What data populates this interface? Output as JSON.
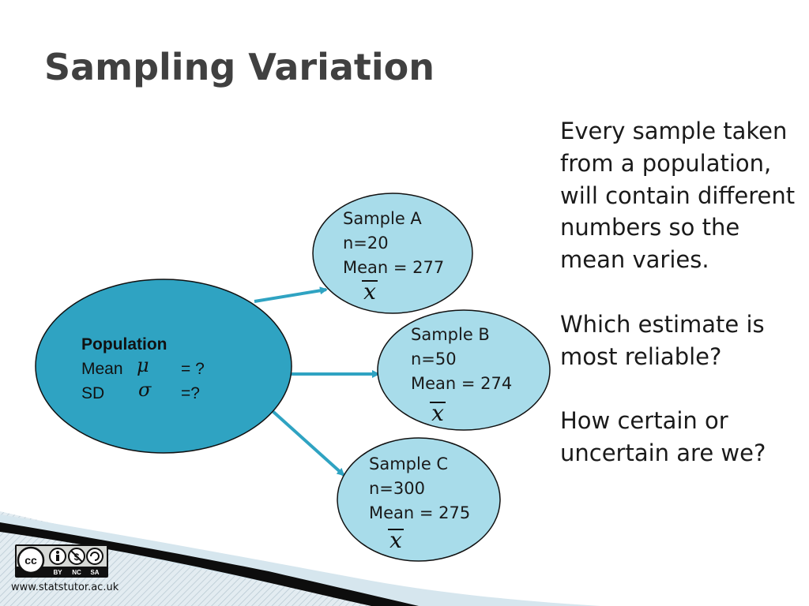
{
  "slide": {
    "title": "Sampling Variation"
  },
  "population": {
    "heading": "Population",
    "mean_label": "Mean",
    "mean_symbol": "μ",
    "mean_value": "= ?",
    "sd_label": "SD",
    "sd_symbol": "σ",
    "sd_value": "=?",
    "fill_color": "#2fa3c2"
  },
  "samples": [
    {
      "name": "Sample A",
      "n": "n=20",
      "mean": "Mean = 277",
      "symbol": "x"
    },
    {
      "name": "Sample B",
      "n": "n=50",
      "mean": "Mean = 274",
      "symbol": "x"
    },
    {
      "name": "Sample C",
      "n": "n=300",
      "mean": "Mean = 275",
      "symbol": "x"
    }
  ],
  "sample_fill_color": "#a8dcea",
  "arrow_color": "#2fa3c2",
  "right_text": {
    "p1": "Every sample taken from a population, will contain different numbers so the mean varies.",
    "p2": "Which estimate is most reliable?",
    "p3": "How certain or uncertain are we?"
  },
  "footer": {
    "license_icon": "creative-commons-by-nc-sa-icon",
    "license_tags": [
      "BY",
      "NC",
      "SA"
    ],
    "url": "www.statstutor.ac.uk"
  }
}
